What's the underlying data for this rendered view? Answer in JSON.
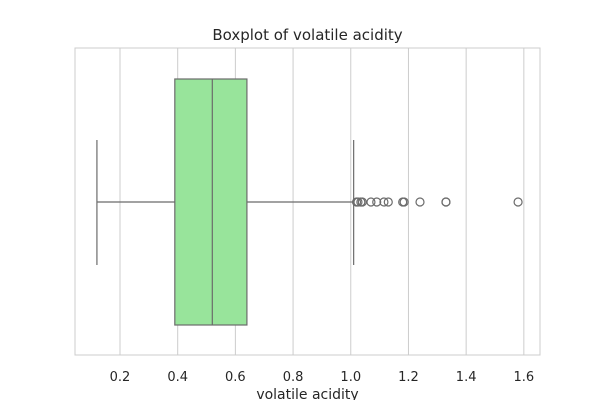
{
  "chart_data": {
    "type": "box",
    "title": "Boxplot of volatile acidity",
    "xlabel": "volatile acidity",
    "ylabel": "",
    "xlim": [
      0.044,
      1.656
    ],
    "xticks": [
      0.2,
      0.4,
      0.6,
      0.8,
      1.0,
      1.2,
      1.4,
      1.6
    ],
    "xtick_labels": [
      "0.2",
      "0.4",
      "0.6",
      "0.8",
      "1.0",
      "1.2",
      "1.4",
      "1.6"
    ],
    "orientation": "horizontal",
    "grid": true,
    "box": {
      "whisker_low": 0.12,
      "q1": 0.39,
      "median": 0.52,
      "q3": 0.64,
      "whisker_high": 1.01
    },
    "outliers": [
      1.02,
      1.025,
      1.035,
      1.04,
      1.07,
      1.09,
      1.115,
      1.13,
      1.18,
      1.185,
      1.24,
      1.33,
      1.33,
      1.58
    ],
    "colors": {
      "box_fill": "#98e49b",
      "box_edge": "#6b6b6b",
      "grid": "#cccccc",
      "spine": "#cccccc",
      "outlier_edge": "#6b6b6b"
    }
  }
}
